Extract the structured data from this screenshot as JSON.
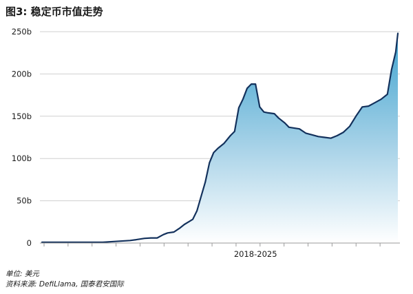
{
  "chart_data": {
    "type": "area",
    "title": "图3: 稳定币市值走势",
    "unit_note": "单位: 美元",
    "source_note": "资料来源: DefiLlama, 国泰君安国际",
    "x_range": [
      2017.5,
      2026.1
    ],
    "xticks": [
      "2018-2025"
    ],
    "ylim": [
      0,
      250
    ],
    "yticks": [
      "0",
      "50b",
      "100b",
      "150b",
      "200b",
      "250b"
    ],
    "ytick_values": [
      0,
      50,
      100,
      150,
      200,
      250
    ],
    "grid": "horizontal",
    "x_label_position": 2022.65,
    "x_tick_marks": [
      2017.55,
      2022.65
    ],
    "colors": {
      "line": "#13315c",
      "fill_top": "#3fa3cf",
      "fill_bottom": "#ffffff",
      "grid": "#cfcfcf",
      "axis": "#9a9a9a"
    },
    "series": [
      {
        "x": [
          2017.55,
          2018.0,
          2019.0,
          2019.65,
          2019.8,
          2020.0,
          2020.15,
          2020.3,
          2020.45,
          2020.55,
          2020.7,
          2020.85,
          2020.95,
          2021.05,
          2021.15,
          2021.25,
          2021.35,
          2021.45,
          2021.55,
          2021.65,
          2021.75,
          2021.9,
          2022.05,
          2022.15,
          2022.25,
          2022.35,
          2022.45,
          2022.55,
          2022.65,
          2022.75,
          2022.85,
          2022.95,
          2023.1,
          2023.2,
          2023.35,
          2023.45,
          2023.7,
          2023.85,
          2024.0,
          2024.15,
          2024.3,
          2024.45,
          2024.6,
          2024.75,
          2024.9,
          2025.05,
          2025.2,
          2025.35,
          2025.5,
          2025.65,
          2025.8,
          2025.9,
          2026.0,
          2026.05
        ],
        "values": [
          1,
          1,
          1,
          3,
          4,
          5.5,
          6,
          6,
          10,
          12,
          13,
          18,
          22,
          25,
          28,
          38,
          55,
          72,
          95,
          107,
          112,
          118,
          127,
          132,
          160,
          170,
          183,
          188,
          188,
          161,
          155,
          154,
          153,
          148,
          142,
          137,
          135,
          130,
          128,
          126,
          125,
          124,
          127,
          131,
          138,
          150,
          161,
          162,
          166,
          170,
          176,
          205,
          226,
          248
        ]
      }
    ]
  }
}
